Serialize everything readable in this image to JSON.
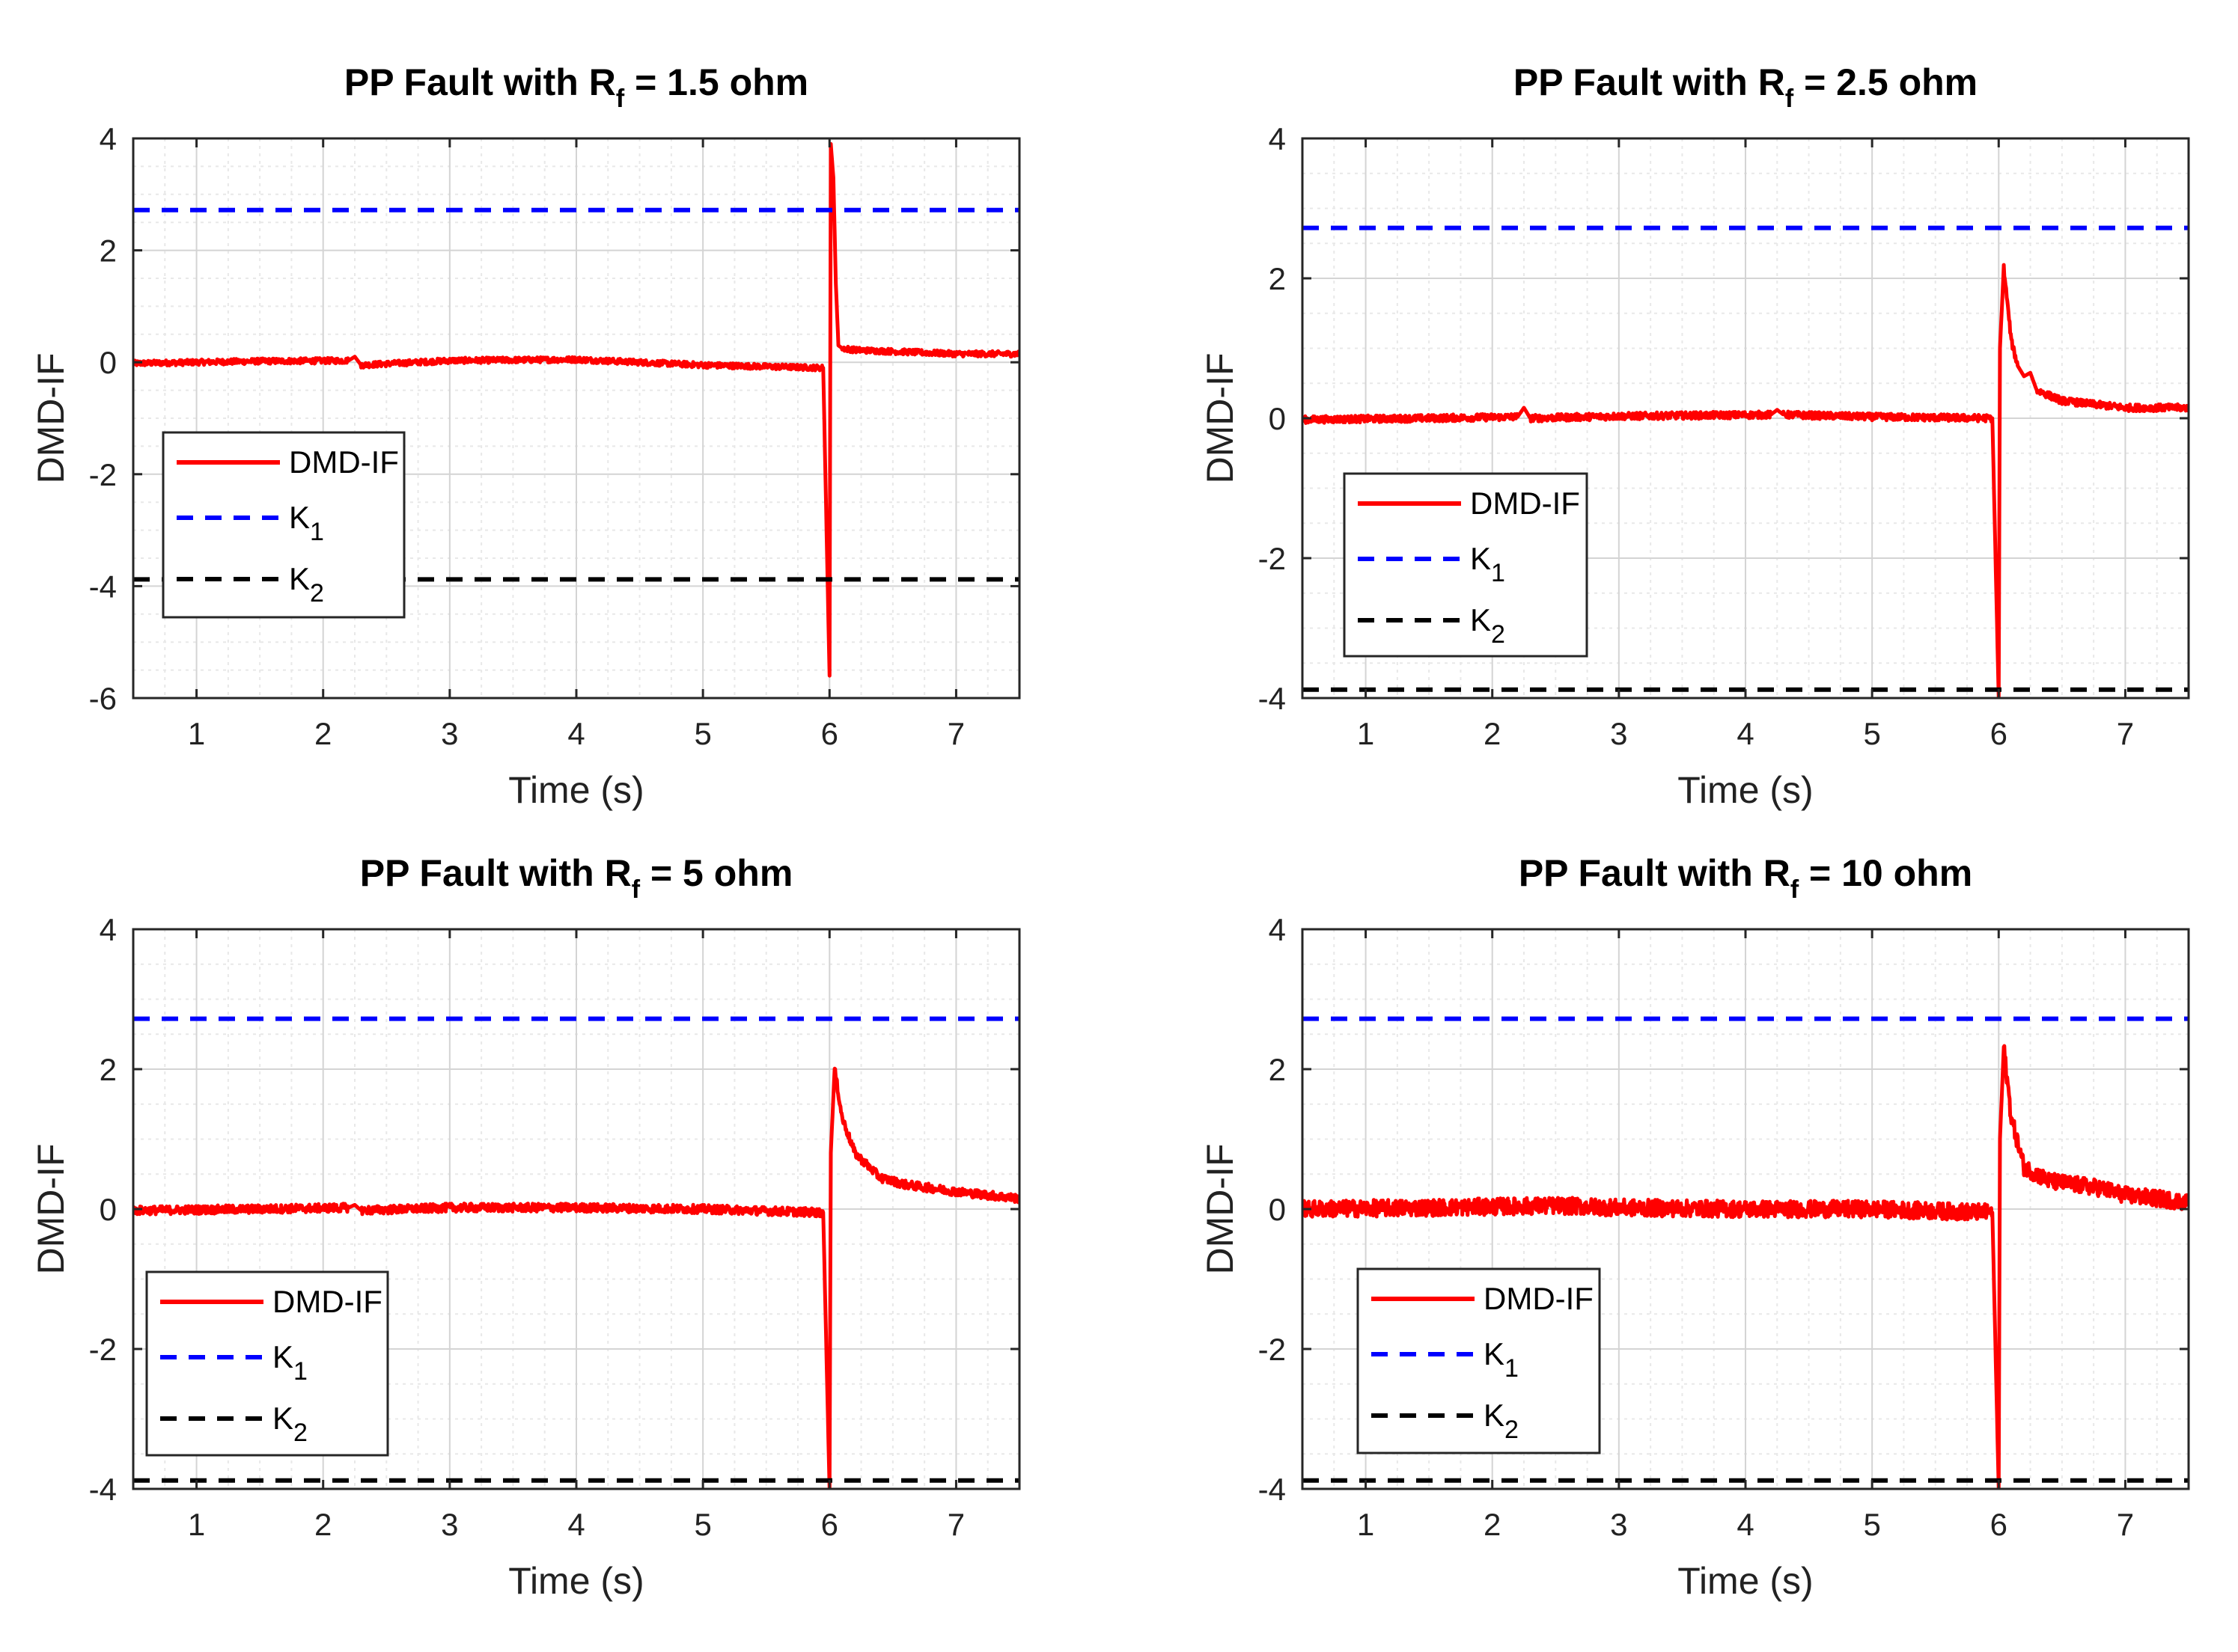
{
  "figure": {
    "colors": {
      "signal": "#ff0000",
      "k1": "#0000ff",
      "k2": "#000000",
      "grid_major": "#d4d4d4",
      "grid_minor": "#e8e8e8"
    }
  },
  "chart_data": [
    {
      "type": "line",
      "title": "PP Fault with R",
      "title_sub": "f",
      "title_suffix": " = 1.5 ohm",
      "xlabel": "Time (s)",
      "ylabel": "DMD-IF",
      "xlim": [
        0.5,
        7.5
      ],
      "ylim": [
        -6,
        4
      ],
      "xticks": [
        "1",
        "2",
        "3",
        "4",
        "5",
        "6",
        "7"
      ],
      "yticks": [
        "-6",
        "-4",
        "-2",
        "0",
        "2",
        "4"
      ],
      "legend_labels": [
        "DMD-IF",
        "K",
        "K"
      ],
      "legend_subs": [
        "",
        "1",
        "2"
      ],
      "legend_position": "lower-left",
      "series": [
        {
          "name": "DMD-IF",
          "style": "solid",
          "x": [
            0.5,
            1.5,
            2.2,
            2.25,
            2.3,
            3.0,
            4.0,
            5.0,
            5.95,
            6.0,
            6.01,
            6.03,
            6.05,
            6.07,
            6.1,
            6.2,
            7.0,
            7.5
          ],
          "y": [
            -0.02,
            0.02,
            0.03,
            0.1,
            -0.05,
            0.03,
            0.05,
            -0.05,
            -0.1,
            -5.6,
            3.9,
            3.3,
            1.4,
            0.3,
            0.25,
            0.22,
            0.15,
            0.15
          ],
          "noise": 0.05
        },
        {
          "name": "K1",
          "style": "dashed",
          "x": [
            0.5,
            7.5
          ],
          "y": [
            2.72,
            2.72
          ]
        },
        {
          "name": "K2",
          "style": "dashed",
          "x": [
            0.5,
            7.5
          ],
          "y": [
            -3.88,
            -3.88
          ]
        }
      ]
    },
    {
      "type": "line",
      "title": "PP Fault with R",
      "title_sub": "f",
      "title_suffix": " = 2.5 ohm",
      "xlabel": "Time (s)",
      "ylabel": "DMD-IF",
      "xlim": [
        0.5,
        7.5
      ],
      "ylim": [
        -4,
        4
      ],
      "xticks": [
        "1",
        "2",
        "3",
        "4",
        "5",
        "6",
        "7"
      ],
      "yticks": [
        "-4",
        "-2",
        "0",
        "2",
        "4"
      ],
      "legend_labels": [
        "DMD-IF",
        "K",
        "K"
      ],
      "legend_subs": [
        "",
        "1",
        "2"
      ],
      "legend_position": "lower-left",
      "series": [
        {
          "name": "DMD-IF",
          "style": "solid",
          "x": [
            0.5,
            1.5,
            2.2,
            2.25,
            2.3,
            3.0,
            4.2,
            4.25,
            4.3,
            5.0,
            5.95,
            6.0,
            6.01,
            6.04,
            6.1,
            6.15,
            6.2,
            6.25,
            6.3,
            6.5,
            7.0,
            7.5
          ],
          "y": [
            -0.02,
            0.0,
            0.02,
            0.15,
            0.0,
            0.03,
            0.05,
            0.12,
            0.05,
            0.02,
            0.0,
            -4.0,
            1.0,
            2.15,
            1.1,
            0.75,
            0.6,
            0.65,
            0.4,
            0.25,
            0.15,
            0.15
          ],
          "noise": 0.05
        },
        {
          "name": "K1",
          "style": "dashed",
          "x": [
            0.5,
            7.5
          ],
          "y": [
            2.72,
            2.72
          ]
        },
        {
          "name": "K2",
          "style": "dashed",
          "x": [
            0.5,
            7.5
          ],
          "y": [
            -3.88,
            -3.88
          ]
        }
      ]
    },
    {
      "type": "line",
      "title": "PP Fault with R",
      "title_sub": "f",
      "title_suffix": " = 5 ohm",
      "xlabel": "Time (s)",
      "ylabel": "DMD-IF",
      "xlim": [
        0.5,
        7.5
      ],
      "ylim": [
        -4,
        4
      ],
      "xticks": [
        "1",
        "2",
        "3",
        "4",
        "5",
        "6",
        "7"
      ],
      "yticks": [
        "-4",
        "-2",
        "0",
        "2",
        "4"
      ],
      "legend_labels": [
        "DMD-IF",
        "K",
        "K"
      ],
      "legend_subs": [
        "",
        "1",
        "2"
      ],
      "legend_position": "lower-left",
      "series": [
        {
          "name": "DMD-IF",
          "style": "solid",
          "x": [
            0.5,
            1.5,
            2.2,
            2.25,
            2.3,
            3.0,
            4.0,
            5.0,
            5.95,
            6.0,
            6.01,
            6.04,
            6.1,
            6.2,
            6.4,
            6.6,
            7.0,
            7.5
          ],
          "y": [
            -0.02,
            0.0,
            0.02,
            0.06,
            -0.02,
            0.02,
            0.02,
            0.0,
            -0.05,
            -4.0,
            0.8,
            2.0,
            1.3,
            0.8,
            0.45,
            0.35,
            0.25,
            0.15
          ],
          "noise": 0.06
        },
        {
          "name": "K1",
          "style": "dashed",
          "x": [
            0.5,
            7.5
          ],
          "y": [
            2.72,
            2.72
          ]
        },
        {
          "name": "K2",
          "style": "dashed",
          "x": [
            0.5,
            7.5
          ],
          "y": [
            -3.88,
            -3.88
          ]
        }
      ]
    },
    {
      "type": "line",
      "title": "PP Fault with R",
      "title_sub": "f",
      "title_suffix": " = 10 ohm",
      "xlabel": "Time (s)",
      "ylabel": "DMD-IF",
      "xlim": [
        0.5,
        7.5
      ],
      "ylim": [
        -4,
        4
      ],
      "xticks": [
        "1",
        "2",
        "3",
        "4",
        "5",
        "6",
        "7"
      ],
      "yticks": [
        "-4",
        "-2",
        "0",
        "2",
        "4"
      ],
      "legend_labels": [
        "DMD-IF",
        "K",
        "K"
      ],
      "legend_subs": [
        "",
        "1",
        "2"
      ],
      "legend_position": "lower-left",
      "series": [
        {
          "name": "DMD-IF",
          "style": "solid",
          "x": [
            0.5,
            1.5,
            2.5,
            3.0,
            4.0,
            4.5,
            5.0,
            5.95,
            6.0,
            6.01,
            6.04,
            6.1,
            6.2,
            6.4,
            6.8,
            7.0,
            7.5
          ],
          "y": [
            0.0,
            0.02,
            0.05,
            0.02,
            0.0,
            0.0,
            0.0,
            -0.05,
            -4.0,
            1.0,
            2.3,
            1.3,
            0.6,
            0.4,
            0.3,
            0.2,
            0.1
          ],
          "noise": 0.12
        },
        {
          "name": "K1",
          "style": "dashed",
          "x": [
            0.5,
            7.5
          ],
          "y": [
            2.72,
            2.72
          ]
        },
        {
          "name": "K2",
          "style": "dashed",
          "x": [
            0.5,
            7.5
          ],
          "y": [
            -3.88,
            -3.88
          ]
        }
      ]
    }
  ]
}
